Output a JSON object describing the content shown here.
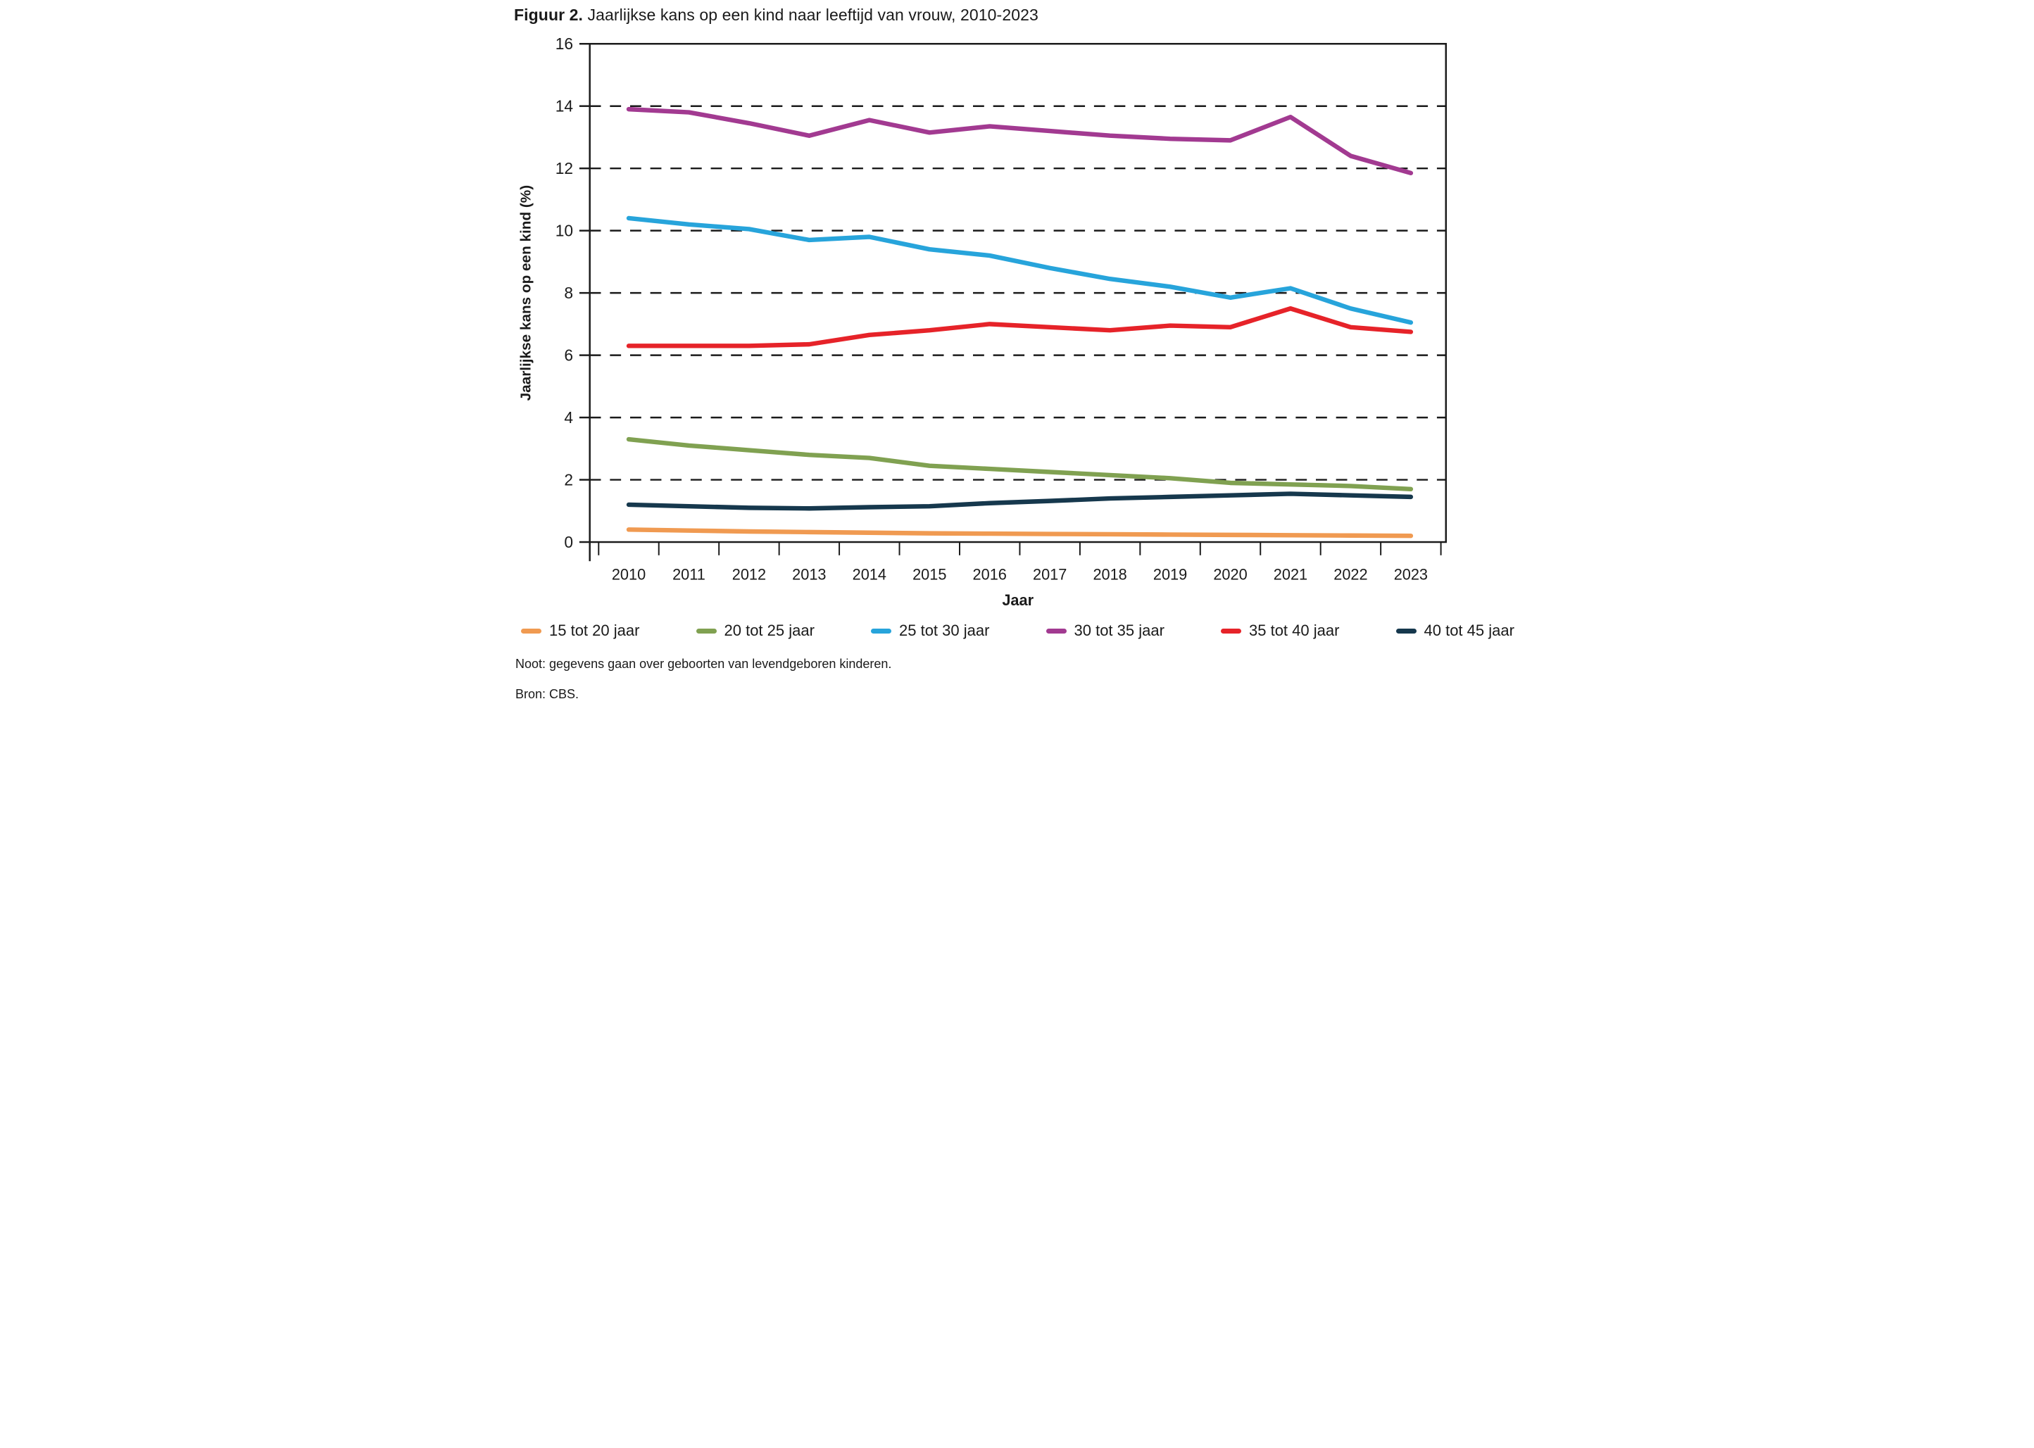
{
  "title": {
    "prefix": "Figuur 2.",
    "text": " Jaarlijkse kans op een kind naar leeftijd van vrouw, 2010-2023"
  },
  "note": "Noot: gegevens gaan over geboorten van levendgeboren kinderen.",
  "source": "Bron: CBS.",
  "colors": {
    "axis": "#1a1a1a",
    "text": "#1a1a1a",
    "background": "#ffffff"
  },
  "chart_data": {
    "type": "line",
    "title": "Figuur 2. Jaarlijkse kans op een kind naar leeftijd van vrouw, 2010-2023",
    "xlabel": "Jaar",
    "ylabel": "Jaarlijkse kans op een kind (%)",
    "categories": [
      "2010",
      "2011",
      "2012",
      "2013",
      "2014",
      "2015",
      "2016",
      "2017",
      "2018",
      "2019",
      "2020",
      "2021",
      "2022",
      "2023"
    ],
    "ylim": [
      0,
      16
    ],
    "ytick_step": 2,
    "grid": "horizontal dashed lines at even values 2-14, solid frame around plot",
    "legend_position": "bottom",
    "series": [
      {
        "name": "15 tot 20 jaar",
        "color": "#F09A51",
        "values": [
          0.4,
          0.37,
          0.34,
          0.32,
          0.3,
          0.28,
          0.27,
          0.26,
          0.25,
          0.24,
          0.23,
          0.22,
          0.21,
          0.2
        ]
      },
      {
        "name": "20 tot 25 jaar",
        "color": "#80A151",
        "values": [
          3.3,
          3.1,
          2.95,
          2.8,
          2.7,
          2.45,
          2.35,
          2.25,
          2.15,
          2.05,
          1.9,
          1.85,
          1.8,
          1.7
        ]
      },
      {
        "name": "25 tot 30 jaar",
        "color": "#27A4DB",
        "values": [
          10.4,
          10.2,
          10.05,
          9.7,
          9.8,
          9.4,
          9.2,
          8.8,
          8.45,
          8.2,
          7.85,
          8.15,
          7.5,
          7.05
        ]
      },
      {
        "name": "30 tot 35 jaar",
        "color": "#A23A91",
        "values": [
          13.9,
          13.8,
          13.45,
          13.05,
          13.55,
          13.15,
          13.35,
          13.2,
          13.05,
          12.95,
          12.9,
          13.65,
          12.4,
          11.85
        ]
      },
      {
        "name": "35 tot 40 jaar",
        "color": "#E62329",
        "values": [
          6.3,
          6.3,
          6.3,
          6.35,
          6.65,
          6.8,
          7.0,
          6.9,
          6.8,
          6.95,
          6.9,
          7.5,
          6.9,
          6.75
        ]
      },
      {
        "name": "40 tot 45 jaar",
        "color": "#16384D",
        "values": [
          1.2,
          1.15,
          1.1,
          1.08,
          1.12,
          1.15,
          1.25,
          1.32,
          1.4,
          1.45,
          1.5,
          1.55,
          1.5,
          1.45
        ]
      }
    ]
  }
}
